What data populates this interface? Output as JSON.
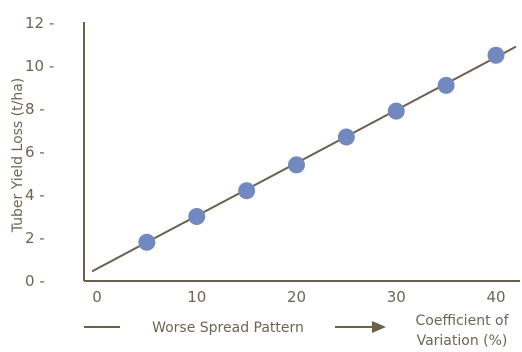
{
  "chart_data": {
    "type": "scatter",
    "title": "",
    "xlabel_lines": [
      "Coefficient of",
      "Variation (%)"
    ],
    "ylabel": "Tuber Yield Loss (t/ha)",
    "annotation": "Worse Spread Pattern",
    "xlim": [
      -1,
      42
    ],
    "ylim": [
      0,
      12
    ],
    "x_ticks": [
      0,
      10,
      20,
      30,
      40
    ],
    "y_ticks": [
      0,
      2,
      4,
      6,
      8,
      10,
      12
    ],
    "grid": false,
    "series": [
      {
        "x": [
          5,
          10,
          15,
          20,
          25,
          30,
          35,
          40
        ],
        "y": [
          1.8,
          3.0,
          4.2,
          5.4,
          6.7,
          7.9,
          9.1,
          10.5
        ]
      }
    ],
    "trendline": {
      "x": [
        -0.5,
        42
      ],
      "y": [
        0.45,
        10.9
      ]
    },
    "colors": {
      "marker": "#7289c0",
      "line": "#6b604c",
      "text": "#6f6452"
    }
  }
}
